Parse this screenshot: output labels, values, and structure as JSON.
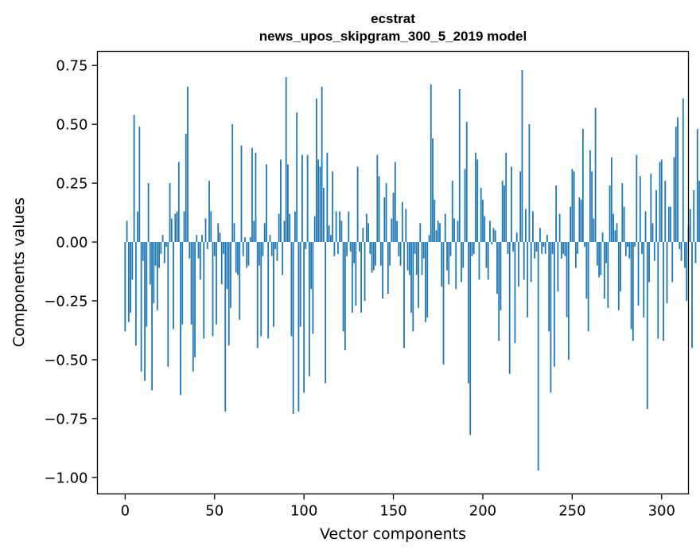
{
  "chart_data": {
    "type": "bar",
    "title": "ecstrat",
    "subtitle": "news_upos_skipgram_300_5_2019 model",
    "xlabel": "Vector components",
    "ylabel": "Components values",
    "xlim": [
      -15.5,
      315
    ],
    "ylim": [
      -1.07,
      0.81
    ],
    "xticks": [
      0,
      50,
      100,
      150,
      200,
      250,
      300
    ],
    "yticks": [
      0.75,
      0.5,
      0.25,
      0.0,
      -0.25,
      -0.5,
      -0.75,
      -1.0
    ],
    "xtick_labels": [
      "0",
      "50",
      "100",
      "150",
      "200",
      "250",
      "300"
    ],
    "ytick_labels": [
      "0.75",
      "0.50",
      "0.25",
      "0.00",
      "−0.25",
      "−0.50",
      "−0.75",
      "−1.00"
    ],
    "bar_color": "#1f77b4",
    "grid": false,
    "values": [
      -0.38,
      0.09,
      -0.34,
      -0.3,
      -0.16,
      0.54,
      -0.44,
      0.13,
      0.49,
      -0.55,
      -0.08,
      -0.59,
      -0.36,
      0.25,
      -0.18,
      -0.63,
      -0.26,
      -0.1,
      -0.29,
      -0.11,
      -0.05,
      0.03,
      -0.09,
      -0.02,
      -0.53,
      0.25,
      0.1,
      -0.37,
      0.12,
      0.13,
      0.34,
      -0.65,
      -0.35,
      0.13,
      0.46,
      0.66,
      -0.07,
      -0.35,
      -0.55,
      -0.49,
      0.03,
      -0.07,
      -0.16,
      0.03,
      -0.41,
      0.1,
      -0.03,
      0.26,
      0.13,
      -0.4,
      -0.06,
      -0.35,
      0.08,
      0.04,
      -0.18,
      -0.05,
      -0.72,
      -0.2,
      -0.44,
      -0.28,
      0.5,
      0.08,
      -0.13,
      -0.14,
      -0.33,
      0.41,
      -0.06,
      0.02,
      -0.11,
      -0.1,
      0.02,
      0.4,
      0.09,
      0.38,
      -0.45,
      -0.1,
      -0.4,
      -0.06,
      0.08,
      0.33,
      -0.41,
      0.03,
      -0.06,
      -0.36,
      -0.03,
      -0.08,
      0.12,
      0.35,
      -0.14,
      0.09,
      0.7,
      0.33,
      0.12,
      -0.4,
      -0.73,
      0.13,
      0.55,
      -0.72,
      -0.36,
      0.37,
      -0.64,
      -0.03,
      0.37,
      -0.57,
      -0.2,
      -0.39,
      0.11,
      0.61,
      0.35,
      0.32,
      0.66,
      0.23,
      -0.6,
      0.38,
      0.07,
      0.03,
      0.3,
      -0.06,
      0.13,
      -0.05,
      0.13,
      0.09,
      -0.38,
      -0.46,
      -0.06,
      0.13,
      -0.04,
      -0.3,
      -0.09,
      -0.27,
      0.32,
      -0.04,
      -0.3,
      0.06,
      -0.25,
      0.12,
      0.08,
      -0.05,
      -0.13,
      -0.12,
      -0.1,
      0.37,
      0.28,
      -0.1,
      -0.24,
      0.19,
      0.25,
      -0.22,
      -0.1,
      0.1,
      0.21,
      0.34,
      0.09,
      -0.06,
      -0.1,
      0.17,
      -0.45,
      0.14,
      -0.12,
      -0.14,
      -0.3,
      -0.38,
      -0.05,
      -0.14,
      -0.28,
      0.08,
      -0.14,
      -0.07,
      -0.34,
      -0.32,
      0.03,
      0.67,
      0.44,
      0.18,
      0.05,
      0.09,
      0.08,
      -0.19,
      -0.52,
      0.12,
      -0.12,
      -0.18,
      -0.06,
      0.26,
      0.1,
      -0.2,
      0.09,
      0.65,
      -0.17,
      -0.11,
      0.31,
      0.51,
      -0.6,
      -0.82,
      -0.06,
      -0.05,
      0.38,
      0.35,
      -0.16,
      0.23,
      0.18,
      0.11,
      -0.11,
      -0.16,
      0.09,
      -0.01,
      0.06,
      0.05,
      -0.22,
      -0.42,
      -0.29,
      0.26,
      0.24,
      0.38,
      -0.05,
      -0.56,
      0.32,
      -0.04,
      -0.43,
      0.04,
      -0.19,
      0.3,
      0.73,
      -0.16,
      0.14,
      -0.32,
      0.5,
      -0.17,
      0.13,
      -0.07,
      -0.04,
      -0.97,
      0.06,
      -0.05,
      -0.02,
      -0.05,
      0.03,
      -0.38,
      -0.64,
      -0.05,
      -0.53,
      0.24,
      -0.21,
      0.12,
      -0.07,
      -0.05,
      -0.06,
      -0.32,
      -0.5,
      0.15,
      0.31,
      0.3,
      -0.11,
      -0.05,
      0.19,
      0.18,
      0.48,
      -0.02,
      -0.24,
      -0.38,
      0.39,
      0.3,
      0.1,
      0.57,
      -0.1,
      -0.15,
      -0.14,
      0.04,
      -0.24,
      -0.09,
      -0.28,
      0.24,
      0.36,
      0.12,
      0.05,
      0.08,
      -0.29,
      -0.21,
      0.25,
      0.15,
      -0.06,
      -0.02,
      -0.07,
      -0.37,
      -0.42,
      -0.02,
      0.37,
      -0.27,
      0.28,
      -0.05,
      -0.32,
      0.13,
      -0.71,
      -0.17,
      0.29,
      0.08,
      -0.08,
      0.22,
      -0.41,
      0.34,
      0.35,
      -0.42,
      0.26,
      -0.26,
      0.15,
      0.15,
      -0.17,
      0.36,
      0.49,
      0.53,
      -0.03,
      -0.08,
      0.61,
      -0.11,
      -0.25,
      0.07,
      0.14,
      -0.45,
      0.22,
      -0.09,
      0.48,
      0.26,
      0.24
    ]
  }
}
